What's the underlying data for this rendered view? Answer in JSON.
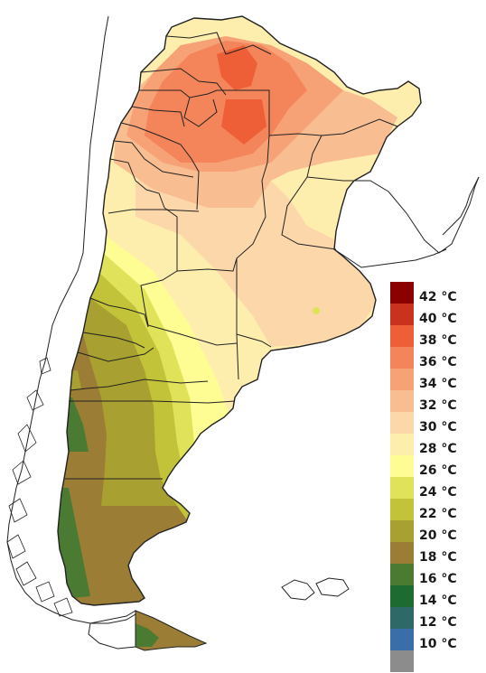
{
  "legend": {
    "items": [
      {
        "label": "42 °C",
        "color": "#8b0000"
      },
      {
        "label": "40 °C",
        "color": "#c8321e"
      },
      {
        "label": "38 °C",
        "color": "#ee5f38"
      },
      {
        "label": "36 °C",
        "color": "#f4845a"
      },
      {
        "label": "34 °C",
        "color": "#f7a276"
      },
      {
        "label": "32 °C",
        "color": "#f9bd92"
      },
      {
        "label": "30 °C",
        "color": "#fcd7aa"
      },
      {
        "label": "28 °C",
        "color": "#feeeae"
      },
      {
        "label": "26 °C",
        "color": "#fdfd94"
      },
      {
        "label": "24 °C",
        "color": "#e0e25a"
      },
      {
        "label": "22 °C",
        "color": "#c3c33a"
      },
      {
        "label": "20 °C",
        "color": "#a8a030"
      },
      {
        "label": "18 °C",
        "color": "#9b7d35"
      },
      {
        "label": "16 °C",
        "color": "#4b7b32"
      },
      {
        "label": "14 °C",
        "color": "#1e6b32"
      },
      {
        "label": "12 °C",
        "color": "#2e6968"
      },
      {
        "label": "10 °C",
        "color": "#3a6ea8"
      },
      {
        "label": "",
        "color": "#8c8c8c"
      }
    ]
  },
  "colors": {
    "background": "#ffffff",
    "border": "#1a1a1a",
    "land_outline": "#222222"
  }
}
